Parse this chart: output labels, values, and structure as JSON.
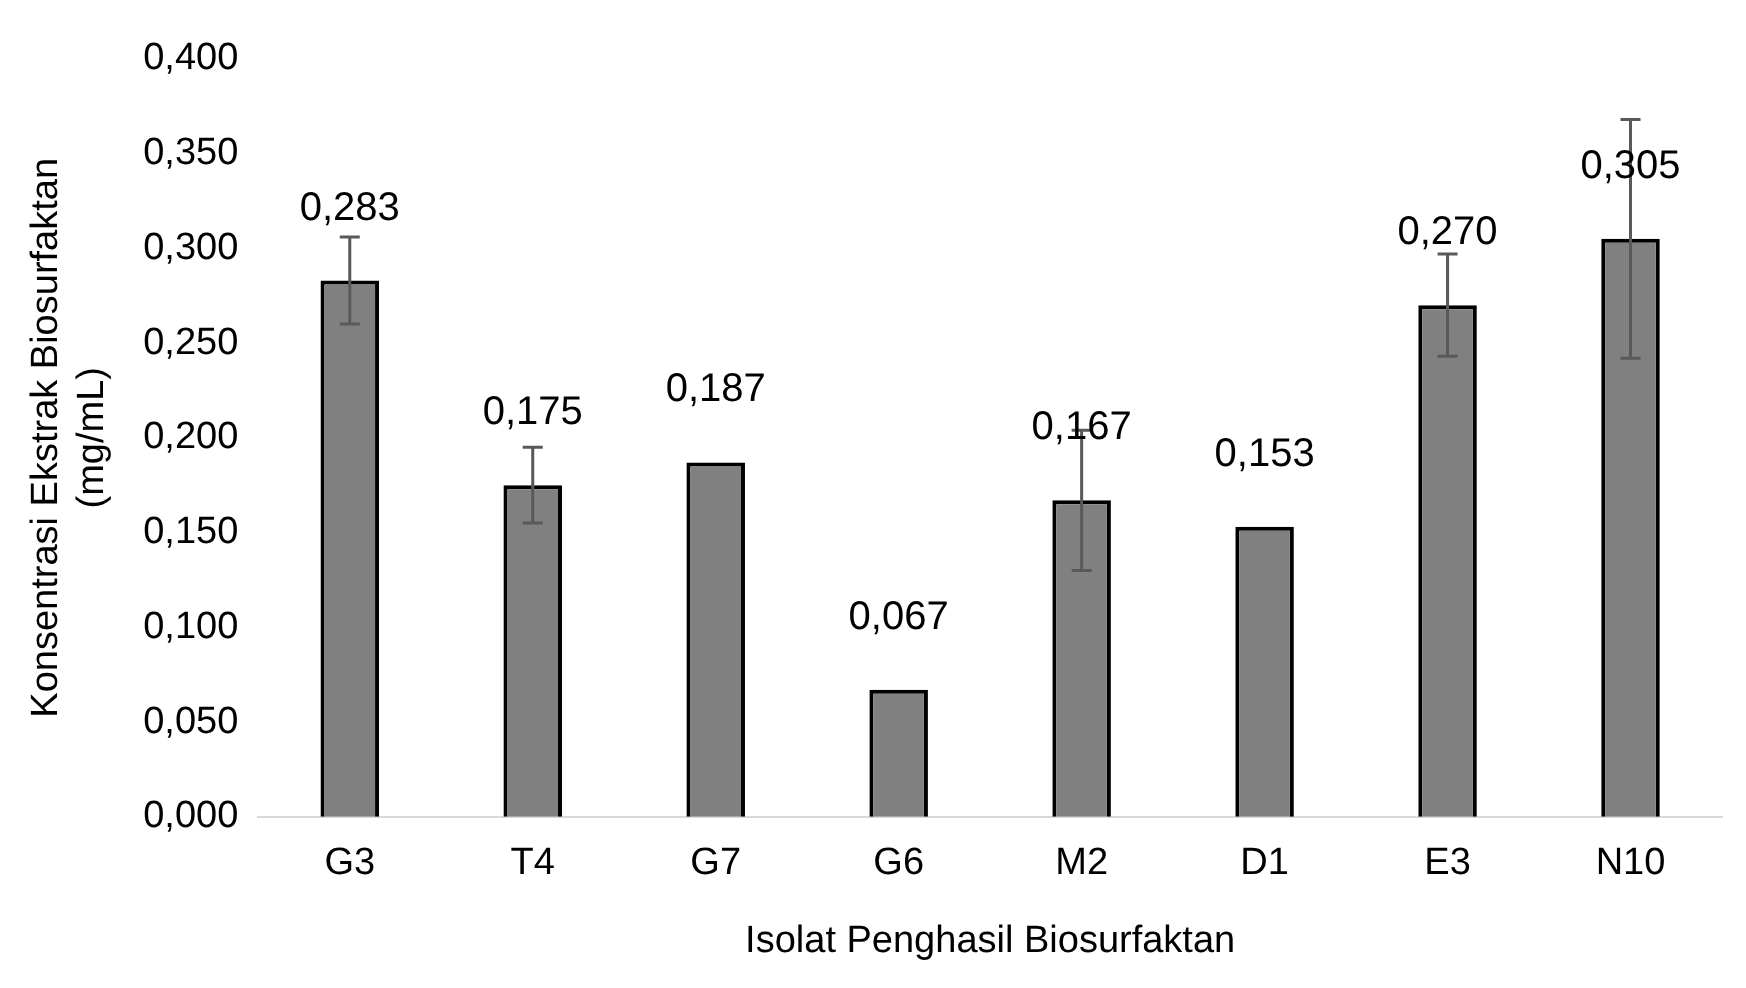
{
  "chart_data": {
    "type": "bar",
    "xlabel": "Isolat Penghasil Biosurfaktan",
    "ylabel": "Konsentrasi Ekstrak Biosurfaktan (mg/mL)",
    "categories": [
      "G3",
      "T4",
      "G7",
      "G6",
      "M2",
      "D1",
      "E3",
      "N10"
    ],
    "values": [
      0.283,
      0.175,
      0.187,
      0.067,
      0.167,
      0.153,
      0.27,
      0.305
    ],
    "value_labels": [
      "0,283",
      "0,175",
      "0,187",
      "0,067",
      "0,167",
      "0,153",
      "0,270",
      "0,305"
    ],
    "errors": [
      0.023,
      0.02,
      null,
      null,
      0.037,
      null,
      0.027,
      0.063
    ],
    "color": "#808080",
    "ylim": [
      0,
      0.4
    ],
    "yticks": [
      {
        "value": 0,
        "label": "0,000"
      },
      {
        "value": 0.05,
        "label": "0,050"
      },
      {
        "value": 0.1,
        "label": "0,100"
      },
      {
        "value": 0.15,
        "label": "0,150"
      },
      {
        "value": 0.2,
        "label": "0,200"
      },
      {
        "value": 0.25,
        "label": "0,250"
      },
      {
        "value": 0.3,
        "label": "0,300"
      },
      {
        "value": 0.35,
        "label": "0,350"
      },
      {
        "value": 0.4,
        "label": "0,400"
      }
    ],
    "grid": false,
    "legend": false
  }
}
